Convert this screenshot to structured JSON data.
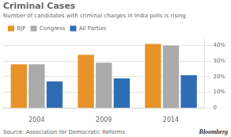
{
  "chart_data": {
    "type": "bar",
    "title": "Criminal Cases",
    "subtitle": "Number of candidates with criminal charges in India polls is rising",
    "categories": [
      "2004",
      "2009",
      "2014"
    ],
    "series": [
      {
        "name": "BJP",
        "color": "#E8922A",
        "values": [
          28,
          34,
          41
        ]
      },
      {
        "name": "Congress",
        "color": "#AAAAAA",
        "values": [
          28,
          29,
          40
        ]
      },
      {
        "name": "All Parties",
        "color": "#2E6DB4",
        "values": [
          17,
          19,
          21
        ]
      }
    ],
    "ylim": [
      0,
      44
    ],
    "yticks": [
      0,
      {
        "value": 10,
        "label": "10%"
      },
      {
        "value": 20,
        "label": "20%"
      },
      {
        "value": 30,
        "label": "30%"
      },
      {
        "value": 40,
        "label": "40%"
      }
    ],
    "grid": true,
    "legend": "top",
    "annotations": [
      "Source: Association for Democratic Reforms",
      "Bloomberg"
    ]
  }
}
